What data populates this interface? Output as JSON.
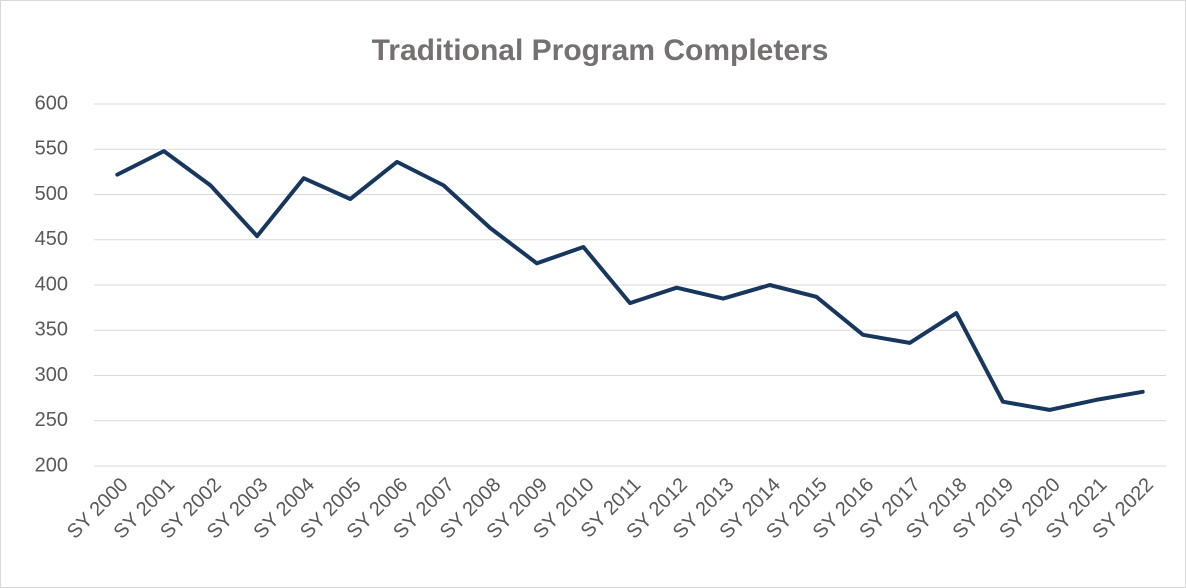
{
  "chart_data": {
    "type": "line",
    "title": "Traditional Program Completers",
    "categories": [
      "SY 2000",
      "SY 2001",
      "SY 2002",
      "SY 2003",
      "SY 2004",
      "SY 2005",
      "SY 2006",
      "SY 2007",
      "SY 2008",
      "SY 2009",
      "SY 2010",
      "SY 2011",
      "SY 2012",
      "SY 2013",
      "SY 2014",
      "SY 2015",
      "SY 2016",
      "SY 2017",
      "SY 2018",
      "SY 2019",
      "SY 2020",
      "SY 2021",
      "SY 2022"
    ],
    "values": [
      522,
      548,
      510,
      454,
      518,
      495,
      536,
      510,
      463,
      424,
      442,
      380,
      397,
      385,
      400,
      387,
      345,
      336,
      369,
      271,
      262,
      273,
      282
    ],
    "color": "#17375e",
    "ylim": [
      200,
      600
    ],
    "yticks": [
      200,
      250,
      300,
      350,
      400,
      450,
      500,
      550,
      600
    ],
    "grid": true
  }
}
